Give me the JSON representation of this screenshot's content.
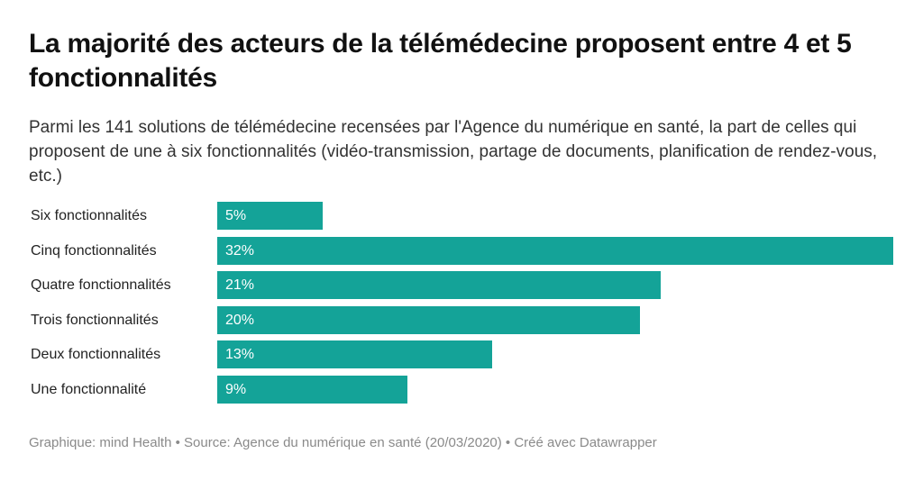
{
  "title": "La majorité des acteurs de la télémédecine proposent entre 4 et 5 fonctionnalités",
  "subtitle": "Parmi les 141 solutions de télémédecine recensées par l'Agence du numérique en santé, la part de celles qui proposent de une à six fonctionnalités (vidéo-transmission, partage de documents, planification de rendez-vous, etc.)",
  "footer": "Graphique: mind Health • Source: Agence du numérique en santé (20/03/2020) • Créé avec Datawrapper",
  "colors": {
    "bar": "#14a398",
    "value_label": "#ffffff",
    "footer_text": "#8a8a8a"
  },
  "chart_data": {
    "type": "bar",
    "orientation": "horizontal",
    "categories": [
      "Six fonctionnalités",
      "Cinq fonctionnalités",
      "Quatre fonctionnalités",
      "Trois fonctionnalités",
      "Deux fonctionnalités",
      "Une fonctionnalité"
    ],
    "values": [
      5,
      32,
      21,
      20,
      13,
      9
    ],
    "value_labels": [
      "5%",
      "32%",
      "21%",
      "20%",
      "13%",
      "9%"
    ],
    "xlim": [
      0,
      32
    ],
    "grid": false,
    "legend": "none"
  }
}
